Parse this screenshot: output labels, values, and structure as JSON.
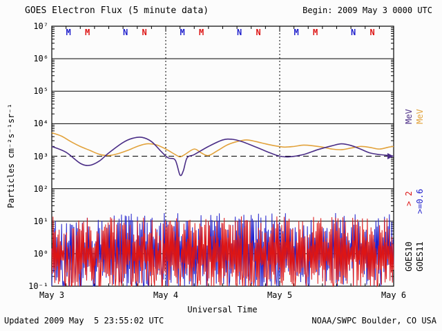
{
  "header": {
    "title": "GOES Electron Flux (5 minute data)",
    "begin_label": "Begin: 2009 May 3 0000 UTC"
  },
  "footer": {
    "updated": "Updated 2009 May  5 23:55:02 UTC",
    "credit": "NOAA/SWPC Boulder, CO USA"
  },
  "axes": {
    "y_title": "Particles cm⁻²s⁻¹sr⁻¹",
    "x_title": "Universal Time"
  },
  "legend": {
    "col1": [
      {
        "text": "MeV",
        "color": "#4a2d86"
      },
      {
        "text": "> 2",
        "color": "#dd1515"
      },
      {
        "text": "GOES10",
        "color": "#000000"
      }
    ],
    "col2": [
      {
        "text": "MeV",
        "color": "#e2a23b"
      },
      {
        "text": ">=0.6",
        "color": "#2020cc"
      },
      {
        "text": "GOES11",
        "color": "#000000"
      }
    ]
  },
  "chart_data": {
    "type": "line",
    "title": "GOES Electron Flux (5 minute data)",
    "x_axis": {
      "label": "Universal Time",
      "range_hours": [
        0,
        72
      ],
      "start": "2009 May 3 0000 UTC"
    },
    "x_tick_labels": [
      "May 3",
      "May 4",
      "May 5",
      "May 6"
    ],
    "y_axis": {
      "label": "Particles cm⁻²s⁻¹sr⁻¹",
      "scale": "log10",
      "log_range": [
        -1,
        7
      ]
    },
    "y_tick_labels": [
      "10⁷",
      "10⁶",
      "10⁵",
      "10⁴",
      "10³",
      "10²",
      "10¹",
      "10⁰",
      "10⁻¹"
    ],
    "threshold_log10": 3,
    "day_boundaries_hours": [
      24,
      48
    ],
    "grid": "solid horizontal line each decade, dashed at 10^3, dotted vertical at day boundaries",
    "markers": {
      "letters": [
        "M",
        "M",
        "N",
        "N"
      ],
      "colors": [
        "#2020cc",
        "#dd1515",
        "#2020cc",
        "#dd1515"
      ],
      "day_offsets_hours": [
        3.5,
        7.5,
        15.5,
        19.5
      ],
      "days": 3
    },
    "series": [
      {
        "name": "GOES10 E>2 MeV",
        "type": "noise",
        "color": "#2020cc",
        "seed": 7,
        "n": 560,
        "hi": [
          0.2,
          1.25
        ],
        "lo": [
          -1.0,
          -0.1
        ],
        "floor": -1
      },
      {
        "name": "GOES11 E>2 MeV",
        "type": "noise",
        "color": "#dd1515",
        "seed": 19,
        "n": 560,
        "hi": [
          0.1,
          1.15
        ],
        "lo": [
          -1.0,
          -0.15
        ],
        "floor": -1
      },
      {
        "name": "GOES11 E>=0.6 MeV",
        "type": "smooth",
        "color": "#e2a23b",
        "points": [
          [
            0,
            3.72
          ],
          [
            2,
            3.62
          ],
          [
            4,
            3.45
          ],
          [
            6,
            3.3
          ],
          [
            8,
            3.18
          ],
          [
            10,
            3.06
          ],
          [
            12,
            3.02
          ],
          [
            14,
            3.08
          ],
          [
            16,
            3.18
          ],
          [
            18,
            3.3
          ],
          [
            20,
            3.38
          ],
          [
            22,
            3.35
          ],
          [
            24,
            3.22
          ],
          [
            26,
            3.05
          ],
          [
            27,
            2.98
          ],
          [
            28,
            3.05
          ],
          [
            30,
            3.22
          ],
          [
            31.5,
            3.1
          ],
          [
            33,
            3.02
          ],
          [
            35,
            3.18
          ],
          [
            37,
            3.35
          ],
          [
            39,
            3.45
          ],
          [
            41,
            3.5
          ],
          [
            43,
            3.45
          ],
          [
            45,
            3.38
          ],
          [
            47,
            3.32
          ],
          [
            49,
            3.28
          ],
          [
            51,
            3.3
          ],
          [
            53,
            3.34
          ],
          [
            55,
            3.32
          ],
          [
            57,
            3.28
          ],
          [
            59,
            3.22
          ],
          [
            61,
            3.2
          ],
          [
            63,
            3.25
          ],
          [
            65,
            3.3
          ],
          [
            67,
            3.27
          ],
          [
            69,
            3.22
          ],
          [
            71,
            3.28
          ],
          [
            72,
            3.3
          ]
        ]
      },
      {
        "name": "GOES10 E>=0.6 MeV",
        "type": "smooth",
        "color": "#4a2d86",
        "end_arrow": true,
        "points": [
          [
            0,
            3.3
          ],
          [
            3,
            3.12
          ],
          [
            6,
            2.78
          ],
          [
            8,
            2.72
          ],
          [
            10,
            2.85
          ],
          [
            12,
            3.1
          ],
          [
            15,
            3.42
          ],
          [
            17,
            3.55
          ],
          [
            19,
            3.58
          ],
          [
            21,
            3.45
          ],
          [
            23,
            3.15
          ],
          [
            24.5,
            2.95
          ],
          [
            26,
            2.88
          ],
          [
            27,
            2.42
          ],
          [
            27.7,
            2.55
          ],
          [
            28.5,
            2.95
          ],
          [
            30,
            3.05
          ],
          [
            33,
            3.3
          ],
          [
            36,
            3.5
          ],
          [
            38,
            3.52
          ],
          [
            40,
            3.45
          ],
          [
            43,
            3.28
          ],
          [
            46,
            3.1
          ],
          [
            48,
            3.0
          ],
          [
            50,
            2.98
          ],
          [
            53,
            3.05
          ],
          [
            56,
            3.2
          ],
          [
            59,
            3.32
          ],
          [
            61,
            3.38
          ],
          [
            63,
            3.33
          ],
          [
            65,
            3.22
          ],
          [
            67,
            3.1
          ],
          [
            69,
            3.05
          ],
          [
            71,
            3.02
          ],
          [
            72,
            3.0
          ]
        ]
      }
    ]
  }
}
